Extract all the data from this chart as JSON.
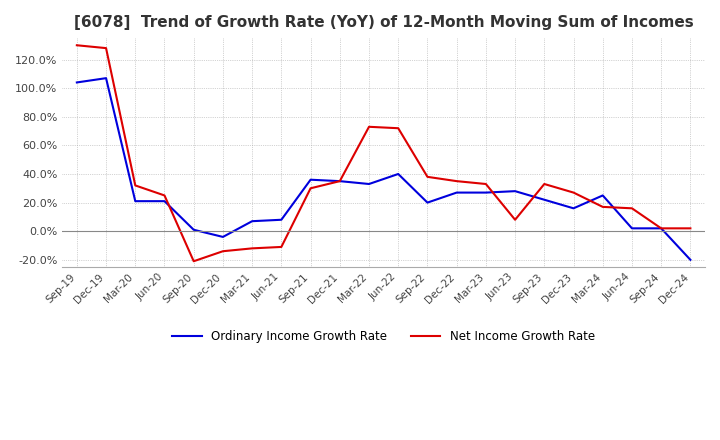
{
  "title": "[6078]  Trend of Growth Rate (YoY) of 12-Month Moving Sum of Incomes",
  "title_fontsize": 11,
  "ylim": [
    -0.25,
    1.35
  ],
  "yticks": [
    -0.2,
    0.0,
    0.2,
    0.4,
    0.6,
    0.8,
    1.0,
    1.2
  ],
  "ytick_labels": [
    "-20.0%",
    "0.0%",
    "20.0%",
    "40.0%",
    "60.0%",
    "80.0%",
    "100.0%",
    "120.0%"
  ],
  "background_color": "#ffffff",
  "grid_color": "#aaaaaa",
  "ordinary_color": "#0000dd",
  "net_color": "#dd0000",
  "legend_labels": [
    "Ordinary Income Growth Rate",
    "Net Income Growth Rate"
  ],
  "x_labels": [
    "Sep-19",
    "Dec-19",
    "Mar-20",
    "Jun-20",
    "Sep-20",
    "Dec-20",
    "Mar-21",
    "Jun-21",
    "Sep-21",
    "Dec-21",
    "Mar-22",
    "Jun-22",
    "Sep-22",
    "Dec-22",
    "Mar-23",
    "Jun-23",
    "Sep-23",
    "Dec-23",
    "Mar-24",
    "Jun-24",
    "Sep-24",
    "Dec-24"
  ],
  "ordinary_income_growth": [
    1.04,
    1.07,
    0.21,
    0.21,
    0.01,
    -0.04,
    0.07,
    0.08,
    0.36,
    0.35,
    0.33,
    0.4,
    0.2,
    0.27,
    0.27,
    0.28,
    0.22,
    0.16,
    0.25,
    0.02,
    0.02,
    -0.2
  ],
  "net_income_growth": [
    1.3,
    1.28,
    0.32,
    0.25,
    -0.21,
    -0.14,
    -0.12,
    -0.11,
    0.3,
    0.35,
    0.73,
    0.72,
    0.38,
    0.35,
    0.33,
    0.08,
    0.33,
    0.27,
    0.17,
    0.16,
    0.02,
    0.02
  ]
}
